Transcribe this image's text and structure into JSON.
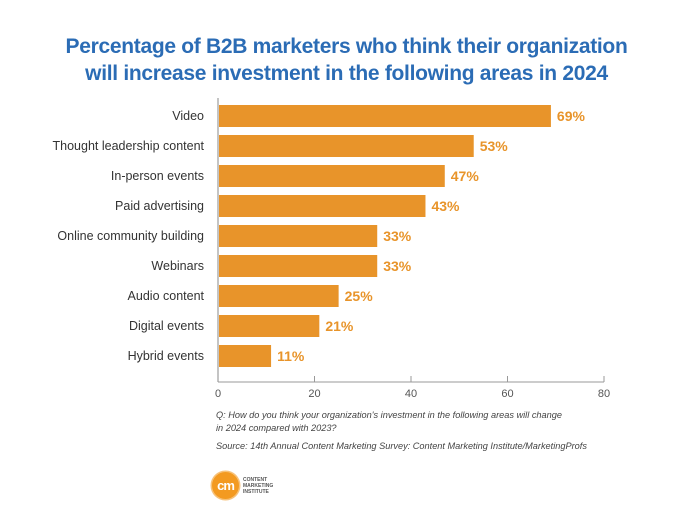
{
  "chart_data": {
    "type": "bar",
    "orientation": "horizontal",
    "title_lines": [
      "Percentage of B2B marketers who think their organization",
      "will increase investment in the following areas in 2024"
    ],
    "categories": [
      "Video",
      "Thought leadership content",
      "In-person events",
      "Paid advertising",
      "Online community building",
      "Webinars",
      "Audio content",
      "Digital events",
      "Hybrid events"
    ],
    "values": [
      69,
      53,
      47,
      43,
      33,
      33,
      25,
      21,
      11
    ],
    "value_labels": [
      "69%",
      "53%",
      "47%",
      "43%",
      "33%",
      "33%",
      "25%",
      "21%",
      "11%"
    ],
    "xlabel": "",
    "ylabel": "",
    "xlim": [
      0,
      80
    ],
    "xticks": [
      0,
      20,
      40,
      60,
      80
    ],
    "grid": false,
    "legend": "none",
    "bar_color": "#e8942a",
    "label_color": "#e8942a",
    "title_color": "#2b6cb5"
  },
  "notes": {
    "question_line1": "Q: How do you think your organization's investment in the following areas will change",
    "question_line2": "in 2024 compared with 2023?",
    "source": "Source: 14th Annual Content Marketing Survey: Content Marketing Institute/MarketingProfs"
  },
  "logo": {
    "mark": "cm",
    "line1": "CONTENT",
    "line2": "MARKETING",
    "line3": "INSTITUTE"
  }
}
